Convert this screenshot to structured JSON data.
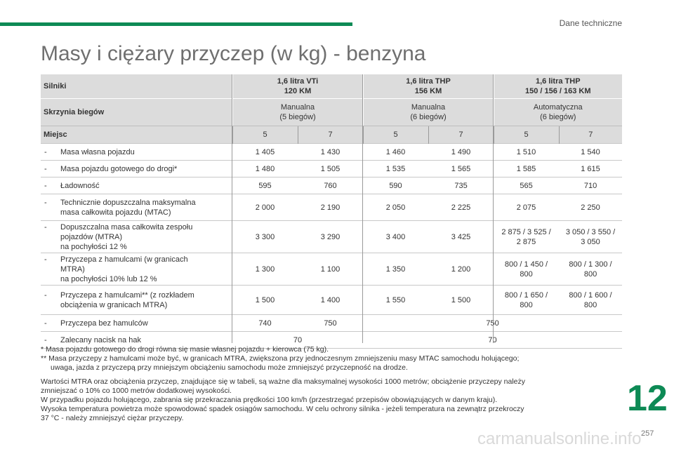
{
  "header": {
    "section": "Dane techniczne"
  },
  "title": "Masy i ciężary przyczep (w kg) - benzyna",
  "table": {
    "silniki": {
      "label": "Silniki",
      "e1": [
        "1,6 litra VTi",
        "120 KM"
      ],
      "e2": [
        "1,6 litra THP",
        "156 KM"
      ],
      "e3": [
        "1,6 litra THP",
        "150 / 156 / 163 KM"
      ]
    },
    "skrzynia": {
      "label": "Skrzynia biegów",
      "g1": [
        "Manualna",
        "(5 biegów)"
      ],
      "g2": [
        "Manualna",
        "(6 biegów)"
      ],
      "g3": [
        "Automatyczna",
        "(6 biegów)"
      ]
    },
    "miejsc": {
      "label": "Miejsc",
      "values": [
        "5",
        "7",
        "5",
        "7",
        "5",
        "7"
      ]
    },
    "rows": [
      {
        "label": [
          "Masa własna pojazdu"
        ],
        "values": [
          "1 405",
          "1 430",
          "1 460",
          "1 490",
          "1 510",
          "1 540"
        ]
      },
      {
        "label": [
          "Masa pojazdu gotowego do drogi*"
        ],
        "values": [
          "1 480",
          "1 505",
          "1 535",
          "1 565",
          "1 585",
          "1 615"
        ]
      },
      {
        "label": [
          "Ładowność"
        ],
        "values": [
          "595",
          "760",
          "590",
          "735",
          "565",
          "710"
        ]
      },
      {
        "label": [
          "Technicznie dopuszczalna maksymalna",
          "masa całkowita pojazdu (MTAC)"
        ],
        "values": [
          "2 000",
          "2 190",
          "2 050",
          "2 225",
          "2 075",
          "2 250"
        ]
      },
      {
        "label": [
          "Dopuszczalna masa całkowita zespołu",
          "pojazdów (MTRA)",
          "na pochyłości 12 %"
        ],
        "values": [
          "3 300",
          "3 290",
          "3 400",
          "3 425",
          "2 875 / 3 525 /",
          "2 875",
          "3 050 / 3 550 /",
          "3 050"
        ]
      },
      {
        "label": [
          "Przyczepa z hamulcami (w granicach",
          "MTRA)",
          "na pochyłości 10% lub 12 %"
        ],
        "values": [
          "1 300",
          "1 100",
          "1 350",
          "1 200",
          "800 / 1 450 /",
          "800",
          "800 / 1 300 /",
          "800"
        ]
      },
      {
        "label": [
          "Przyczepa z hamulcami** (z rozkładem",
          "obciążenia w granicach MTRA)"
        ],
        "values": [
          "1 500",
          "1 400",
          "1 550",
          "1 500",
          "800 / 1 650 /",
          "800",
          "800 / 1 600 /",
          "800"
        ]
      },
      {
        "label": [
          "Przyczepa bez hamulców"
        ],
        "values": [
          "740",
          "750",
          "750"
        ]
      },
      {
        "label": [
          "Zalecany nacisk na hak"
        ],
        "values": [
          "70",
          "70"
        ]
      }
    ]
  },
  "notes": {
    "n1": "* Masa pojazdu gotowego do drogi równa się masie własnej pojazdu + kierowca (75 kg).",
    "n2a": "** Masa przyczepy z hamulcami może być, w granicach MTRA, zwiększona przy jednoczesnym zmniejszeniu masy MTAC samochodu holującego;",
    "n2b": "uwaga, jazda z przyczepą przy mniejszym obciążeniu samochodu może zmniejszyć przyczepność na drodze.",
    "p1a": "Wartości MTRA oraz obciążenia przyczep, znajdujące się w tabeli, są ważne dla maksymalnej wysokości 1000 metrów; obciążenie przyczepy należy",
    "p1b": "zmniejszać o 10% co 1000 metrów dodatkowej wysokości.",
    "p2": "W przypadku pojazdu holującego, zabrania się przekraczania prędkości 100 km/h (przestrzegać przepisów obowiązujących w danym kraju).",
    "p3a": "Wysoka temperatura powietrza może spowodować spadek osiągów samochodu. W celu ochrony silnika - jeżeli temperatura na zewnątrz przekroczy",
    "p3b": "37 °C - należy zmniejszyć ciężar przyczepy."
  },
  "footer": {
    "chapter": "12",
    "page": "257",
    "watermark": "carmanualsonline.info"
  },
  "colors": {
    "accent": "#0d8a55",
    "header_bg": "#dcdcdc"
  }
}
